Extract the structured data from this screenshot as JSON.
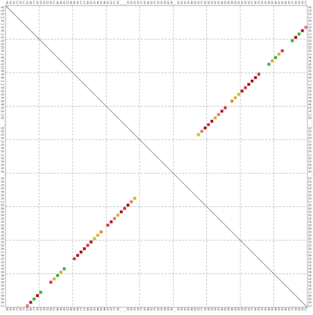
{
  "sequence": [
    "A",
    "G",
    "G",
    "C",
    "U",
    "C",
    "G",
    "A",
    "C",
    "G",
    "G",
    "G",
    "U",
    "U",
    "C",
    "A",
    "A",
    "G",
    "U",
    "A",
    "A",
    "U",
    "C",
    "C",
    "A",
    "G",
    "G",
    "A",
    "U",
    "A",
    "G",
    "G",
    "C",
    "U",
    "_",
    "_",
    "G",
    "U",
    "G",
    "U",
    "C",
    "G",
    "A",
    "U",
    "C",
    "U",
    "G",
    "U",
    "G",
    "A",
    "_",
    "G",
    "G",
    "G",
    "G",
    "A",
    "U",
    "U",
    "C",
    "U",
    "U",
    "G",
    "U",
    "G",
    "A",
    "U",
    "U",
    "A",
    "G",
    "U",
    "U",
    "G",
    "U",
    "C",
    "U",
    "G",
    "G",
    "G",
    "A",
    "U",
    "A",
    "G",
    "G",
    "A",
    "G",
    "C",
    "U",
    "U",
    "U",
    "C"
  ],
  "pairs": [
    {
      "i": 6,
      "j": 89,
      "color": "#e06666"
    },
    {
      "i": 7,
      "j": 88,
      "color": "#a00000"
    },
    {
      "i": 8,
      "j": 87,
      "color": "#22aa22"
    },
    {
      "i": 9,
      "j": 86,
      "color": "#a00000"
    },
    {
      "i": 10,
      "j": 85,
      "color": "#22aa22"
    },
    {
      "i": 13,
      "j": 82,
      "color": "#cc2222"
    },
    {
      "i": 14,
      "j": 81,
      "color": "#ccaa22"
    },
    {
      "i": 15,
      "j": 80,
      "color": "#22aa22"
    },
    {
      "i": 16,
      "j": 79,
      "color": "#ccaa22"
    },
    {
      "i": 17,
      "j": 78,
      "color": "#22aa22"
    },
    {
      "i": 20,
      "j": 75,
      "color": "#cc2222"
    },
    {
      "i": 21,
      "j": 74,
      "color": "#a00000"
    },
    {
      "i": 22,
      "j": 73,
      "color": "#a00000"
    },
    {
      "i": 23,
      "j": 72,
      "color": "#a00000"
    },
    {
      "i": 24,
      "j": 71,
      "color": "#cc2222"
    },
    {
      "i": 25,
      "j": 70,
      "color": "#a00000"
    },
    {
      "i": 26,
      "j": 69,
      "color": "#ccaa22"
    },
    {
      "i": 27,
      "j": 68,
      "color": "#ccaa22"
    },
    {
      "i": 28,
      "j": 67,
      "color": "#dd7722"
    },
    {
      "i": 30,
      "j": 65,
      "color": "#cc2222"
    },
    {
      "i": 31,
      "j": 64,
      "color": "#a00000"
    },
    {
      "i": 32,
      "j": 63,
      "color": "#e06666"
    },
    {
      "i": 33,
      "j": 62,
      "color": "#ccaa22"
    },
    {
      "i": 34,
      "j": 61,
      "color": "#a00000"
    },
    {
      "i": 35,
      "j": 60,
      "color": "#cc2222"
    },
    {
      "i": 36,
      "j": 59,
      "color": "#a00000"
    },
    {
      "i": 37,
      "j": 58,
      "color": "#e06666"
    },
    {
      "i": 38,
      "j": 57,
      "color": "#ccaa22"
    }
  ]
}
